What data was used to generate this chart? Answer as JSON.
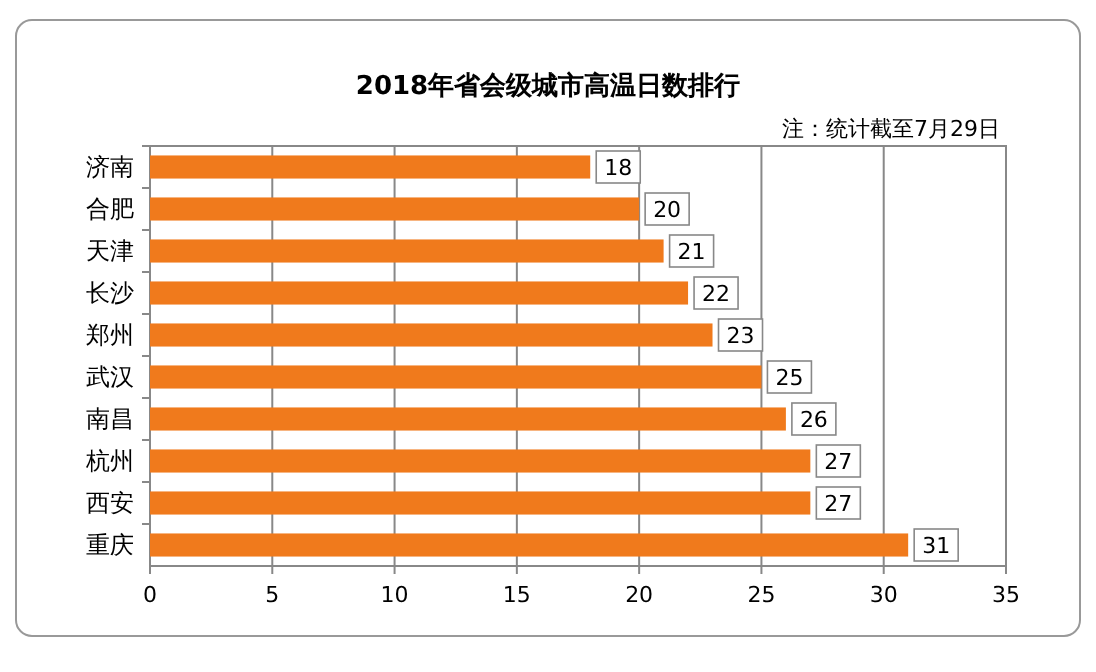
{
  "chart_data": {
    "type": "bar",
    "orientation": "horizontal",
    "title": "2018年省会级城市高温日数排行",
    "annotations": [
      "注：统计截至7月29日"
    ],
    "categories": [
      "济南",
      "合肥",
      "天津",
      "长沙",
      "郑州",
      "武汉",
      "南昌",
      "杭州",
      "西安",
      "重庆"
    ],
    "values": [
      18,
      20,
      21,
      22,
      23,
      25,
      26,
      27,
      27,
      31
    ],
    "color": "#f07a1c",
    "xlim": [
      0,
      35
    ],
    "xticks": [
      0,
      5,
      10,
      15,
      20,
      25,
      30,
      35
    ],
    "grid": "x",
    "data_labels": true
  }
}
